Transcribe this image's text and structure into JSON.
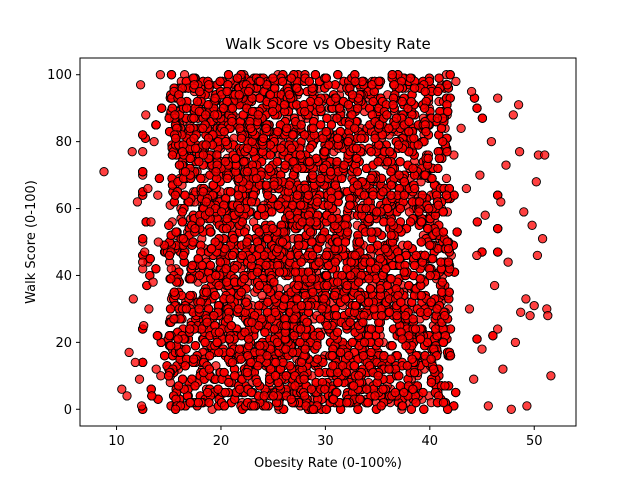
{
  "chart_data": {
    "type": "scatter",
    "title": "Walk Score vs Obesity Rate",
    "xlabel": "Obesity Rate (0-100%)",
    "ylabel": "Walk Score (0-100)",
    "xlim": [
      6.5,
      54.0
    ],
    "ylim": [
      -5,
      105
    ],
    "xticks": [
      10,
      20,
      30,
      40,
      50
    ],
    "yticks": [
      0,
      20,
      40,
      60,
      80,
      100
    ],
    "grid": false,
    "marker_color": "#ff0000",
    "marker_edge_color": "#000000",
    "marker_alpha": 0.75,
    "n_points": 9000,
    "core_x_range": [
      15,
      42
    ],
    "outlier_points": [
      {
        "x": 8.8,
        "y": 71
      },
      {
        "x": 10.5,
        "y": 6
      },
      {
        "x": 11.0,
        "y": 4
      },
      {
        "x": 11.2,
        "y": 17
      },
      {
        "x": 11.5,
        "y": 77
      },
      {
        "x": 11.6,
        "y": 33
      },
      {
        "x": 11.8,
        "y": 14
      },
      {
        "x": 12.0,
        "y": 62
      },
      {
        "x": 12.2,
        "y": 9
      },
      {
        "x": 12.3,
        "y": 97
      },
      {
        "x": 12.4,
        "y": 1
      },
      {
        "x": 12.5,
        "y": 44
      },
      {
        "x": 12.6,
        "y": 25
      },
      {
        "x": 12.7,
        "y": 47
      },
      {
        "x": 12.8,
        "y": 88
      },
      {
        "x": 13.0,
        "y": 66
      },
      {
        "x": 13.1,
        "y": 30
      },
      {
        "x": 13.3,
        "y": 56
      },
      {
        "x": 13.5,
        "y": 38
      },
      {
        "x": 13.6,
        "y": 80
      },
      {
        "x": 13.8,
        "y": 12
      },
      {
        "x": 13.9,
        "y": 22
      },
      {
        "x": 14.0,
        "y": 50
      },
      {
        "x": 14.2,
        "y": 100
      },
      {
        "x": 42.5,
        "y": 98
      },
      {
        "x": 43.0,
        "y": 84
      },
      {
        "x": 43.5,
        "y": 66
      },
      {
        "x": 43.8,
        "y": 30
      },
      {
        "x": 44.0,
        "y": 95
      },
      {
        "x": 44.2,
        "y": 9
      },
      {
        "x": 44.5,
        "y": 46
      },
      {
        "x": 44.8,
        "y": 70
      },
      {
        "x": 45.0,
        "y": 18
      },
      {
        "x": 45.3,
        "y": 58
      },
      {
        "x": 45.6,
        "y": 1
      },
      {
        "x": 45.9,
        "y": 80
      },
      {
        "x": 46.2,
        "y": 37
      },
      {
        "x": 46.5,
        "y": 24
      },
      {
        "x": 46.8,
        "y": 62
      },
      {
        "x": 47.0,
        "y": 12
      },
      {
        "x": 47.3,
        "y": 73
      },
      {
        "x": 47.5,
        "y": 44
      },
      {
        "x": 47.8,
        "y": 0
      },
      {
        "x": 48.0,
        "y": 88
      },
      {
        "x": 48.2,
        "y": 20
      },
      {
        "x": 48.5,
        "y": 91
      },
      {
        "x": 48.6,
        "y": 77
      },
      {
        "x": 48.7,
        "y": 29
      },
      {
        "x": 49.0,
        "y": 59
      },
      {
        "x": 49.2,
        "y": 33
      },
      {
        "x": 49.3,
        "y": 1
      },
      {
        "x": 49.8,
        "y": 55
      },
      {
        "x": 50.0,
        "y": 31
      },
      {
        "x": 50.2,
        "y": 68
      },
      {
        "x": 50.3,
        "y": 46
      },
      {
        "x": 50.4,
        "y": 76
      },
      {
        "x": 50.8,
        "y": 51
      },
      {
        "x": 51.0,
        "y": 76
      },
      {
        "x": 51.2,
        "y": 30
      },
      {
        "x": 51.3,
        "y": 28
      },
      {
        "x": 51.6,
        "y": 10
      },
      {
        "x": 49.6,
        "y": 28
      }
    ]
  }
}
